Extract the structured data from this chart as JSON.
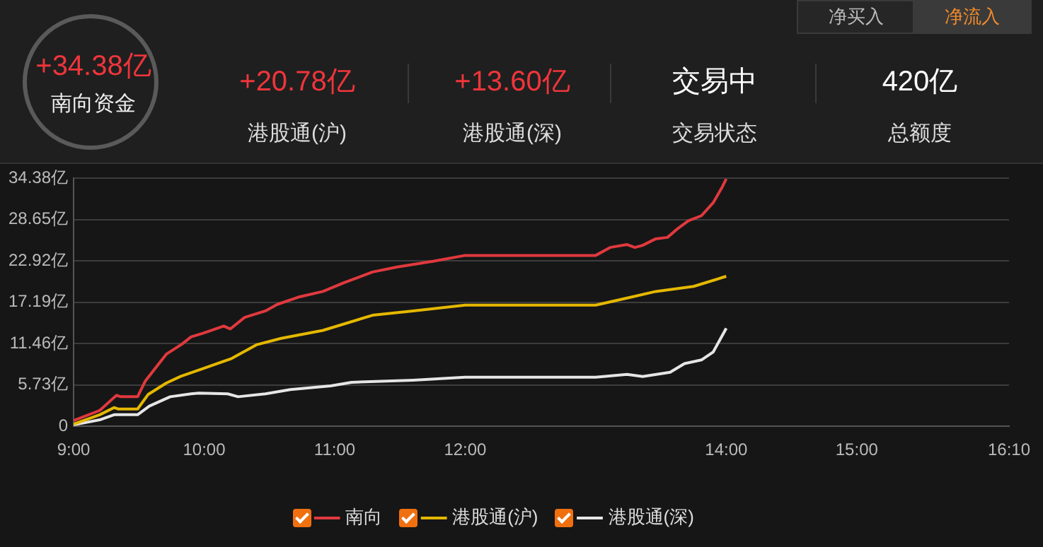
{
  "chart_data": {
    "type": "line",
    "annotations": [
      "+34.38亿",
      "南向资金",
      "+20.78亿",
      "港股通(沪)",
      "+13.60亿",
      "港股通(深)",
      "交易中",
      "交易状态",
      "420亿",
      "总额度",
      "净买入",
      "净流入"
    ],
    "xlim": [
      9,
      16.1667
    ],
    "xticks": [
      {
        "value": 9,
        "label": "9:00"
      },
      {
        "value": 10,
        "label": "10:00"
      },
      {
        "value": 11,
        "label": "11:00"
      },
      {
        "value": 12,
        "label": "12:00"
      },
      {
        "value": 14,
        "label": "14:00"
      },
      {
        "value": 15,
        "label": "15:00"
      },
      {
        "value": 16.1667,
        "label": "16:10"
      }
    ],
    "ylim": [
      0,
      34.38
    ],
    "yticks": [
      0,
      {
        "value": 5.73,
        "label": "5.73亿"
      },
      {
        "value": 11.46,
        "label": "11.46亿"
      },
      {
        "value": 17.19,
        "label": "17.19亿"
      },
      {
        "value": 22.92,
        "label": "22.92亿"
      },
      {
        "value": 28.65,
        "label": "28.65亿"
      },
      {
        "value": 34.38,
        "label": "34.38亿"
      }
    ],
    "grid": "y",
    "legend": "bottom",
    "marker": "none",
    "line_style": "solid",
    "series": [
      {
        "name": "南向",
        "color": "#e0393e",
        "x": [
          9,
          9.2,
          9.31,
          9.33,
          9.36,
          9.49,
          9.55,
          9.71,
          9.83,
          9.9,
          9.99,
          10.15,
          10.2,
          10.31,
          10.47,
          10.56,
          10.72,
          10.91,
          11.07,
          11.29,
          11.48,
          11.76,
          12,
          13,
          13.11,
          13.24,
          13.3,
          13.36,
          13.46,
          13.55,
          13.62,
          13.71,
          13.81,
          13.9,
          13.97,
          14
        ],
        "values": [
          0.8,
          2.2,
          4,
          4.3,
          4.1,
          4.1,
          6.3,
          10,
          11.4,
          12.4,
          12.9,
          13.9,
          13.5,
          15.1,
          16,
          16.9,
          17.9,
          18.7,
          19.9,
          21.4,
          22.1,
          22.9,
          23.7,
          23.7,
          24.8,
          25.2,
          24.8,
          25.1,
          26,
          26.2,
          27.3,
          28.5,
          29.2,
          31,
          33.2,
          34.3
        ]
      },
      {
        "name": "港股通(沪)",
        "color": "#e5b800",
        "x": [
          9,
          9.2,
          9.31,
          9.34,
          9.49,
          9.57,
          9.71,
          9.83,
          9.99,
          10.21,
          10.4,
          10.59,
          10.91,
          11.29,
          11.6,
          12,
          13,
          13.27,
          13.46,
          13.75,
          14
        ],
        "values": [
          0.3,
          1.6,
          2.6,
          2.4,
          2.4,
          4.4,
          6,
          7,
          8,
          9.4,
          11.3,
          12.2,
          13.3,
          15.4,
          16,
          16.8,
          16.8,
          17.9,
          18.7,
          19.4,
          20.8
        ]
      },
      {
        "name": "港股通(深)",
        "color": "#e6e6e6",
        "x": [
          9,
          9.2,
          9.31,
          9.49,
          9.58,
          9.74,
          9.9,
          9.96,
          10.18,
          10.26,
          10.47,
          10.66,
          10.97,
          11.13,
          11.6,
          12,
          13,
          13.24,
          13.36,
          13.57,
          13.68,
          13.81,
          13.9,
          14
        ],
        "values": [
          0.2,
          0.9,
          1.6,
          1.6,
          2.8,
          4.1,
          4.5,
          4.6,
          4.5,
          4.1,
          4.5,
          5.1,
          5.6,
          6.1,
          6.4,
          6.8,
          6.8,
          7.2,
          6.9,
          7.5,
          8.7,
          9.2,
          10.3,
          13.6
        ]
      }
    ]
  }
}
